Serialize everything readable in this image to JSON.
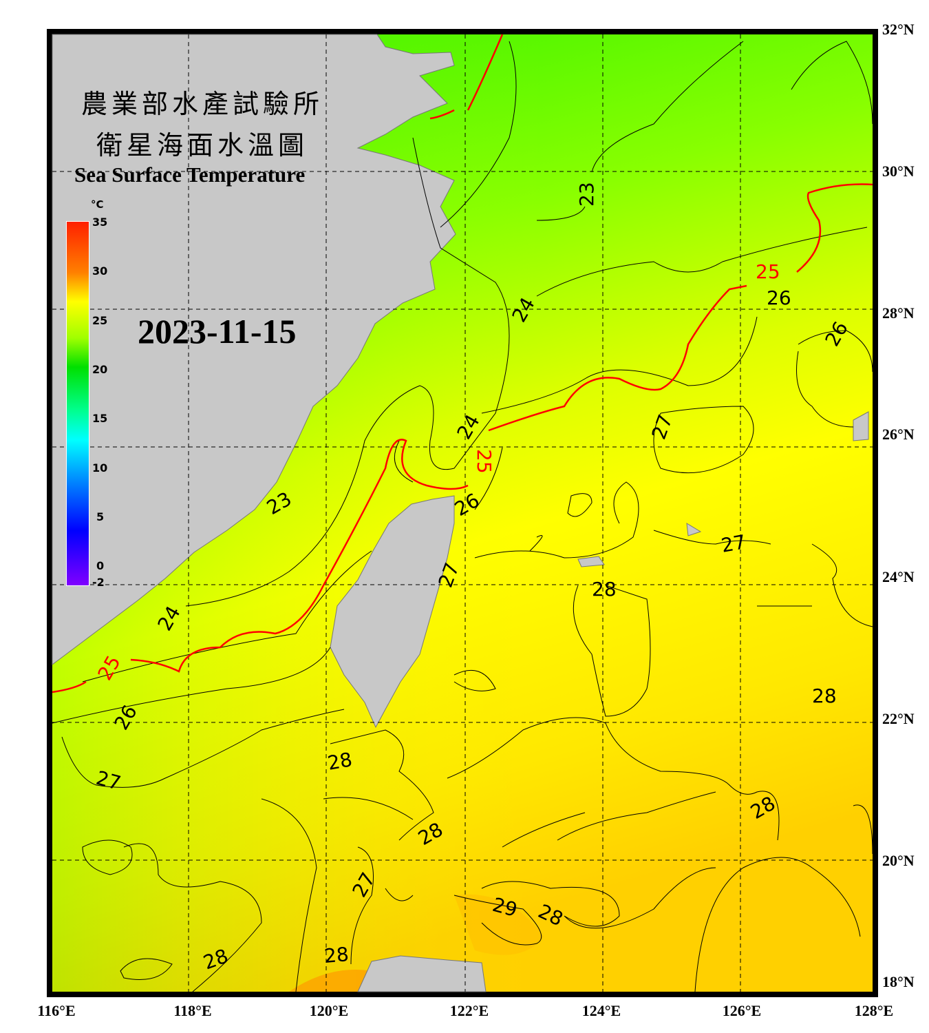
{
  "title_zh_1": "農業部水產試驗所",
  "title_zh_2": "衛星海面水溫圖",
  "title_en": "Sea Surface Temperature",
  "date": "2023-11-15",
  "colorbar": {
    "unit": "°C",
    "ticks": [
      "35",
      "30",
      "25",
      "20",
      "15",
      "10",
      "5",
      "0",
      "-2"
    ],
    "range": [
      -2,
      35
    ],
    "colors": [
      "#8000ff",
      "#0000ff",
      "#0080ff",
      "#00ffff",
      "#00ff90",
      "#00e000",
      "#a0ff00",
      "#ffff00",
      "#ff8000",
      "#ff2000"
    ]
  },
  "axes": {
    "lon_labels": [
      "116°E",
      "118°E",
      "120°E",
      "122°E",
      "124°E",
      "126°E",
      "128°E"
    ],
    "lat_labels": [
      "32°N",
      "30°N",
      "28°N",
      "26°N",
      "24°N",
      "22°N",
      "20°N",
      "18°N"
    ]
  },
  "contour_labels": [
    "23",
    "23",
    "24",
    "24",
    "24",
    "25",
    "25",
    "25",
    "26",
    "26",
    "26",
    "26",
    "27",
    "27",
    "27",
    "27",
    "27",
    "28",
    "28",
    "28",
    "28",
    "28",
    "28",
    "28",
    "28",
    "29"
  ],
  "colors": {
    "land": "#c8c8c8",
    "contour": "#000000",
    "contour_25": "#ff0000",
    "frame": "#000000"
  }
}
